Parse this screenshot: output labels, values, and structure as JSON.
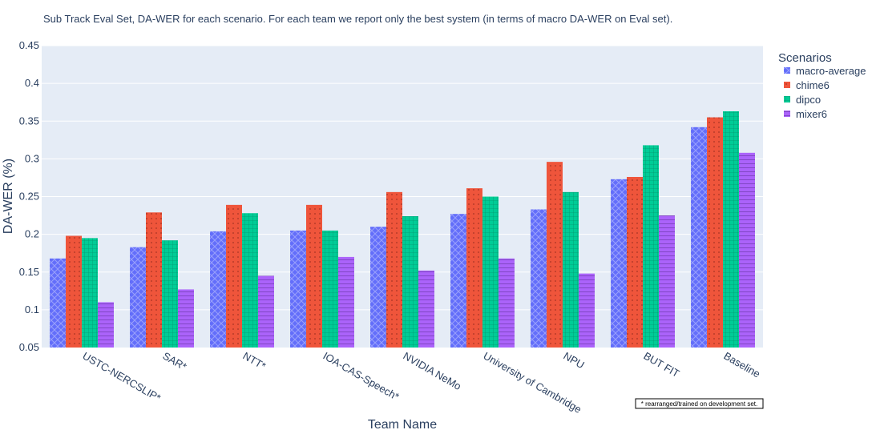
{
  "chart_data": {
    "type": "bar",
    "title": "Sub Track Eval Set, DA-WER for each scenario. For each team we report only the best system (in terms of macro DA-WER on Eval set).",
    "xlabel": "Team Name",
    "ylabel": "DA-WER (%)",
    "ylim": [
      0.05,
      0.45
    ],
    "yticks": [
      0.05,
      0.1,
      0.15,
      0.2,
      0.25,
      0.3,
      0.35,
      0.4,
      0.45
    ],
    "ytick_labels": [
      "0.05",
      "0.1",
      "0.15",
      "0.2",
      "0.25",
      "0.3",
      "0.35",
      "0.4",
      "0.45"
    ],
    "grid": true,
    "legend_title": "Scenarios",
    "legend_position": "top-right outside",
    "categories": [
      "USTC-NERCSLIP*",
      "SAR*",
      "NTT*",
      "IOA-CAS-Speech*",
      "NVIDIA NeMo",
      "University of Cambridge",
      "NPU",
      "BUT FIT",
      "Baseline"
    ],
    "series": [
      {
        "name": "macro-average",
        "color": "#636efa",
        "pattern": "crosshatch",
        "values": [
          0.168,
          0.183,
          0.204,
          0.205,
          0.21,
          0.227,
          0.233,
          0.273,
          0.342
        ]
      },
      {
        "name": "chime6",
        "color": "#ef553b",
        "pattern": "dots",
        "values": [
          0.198,
          0.229,
          0.239,
          0.239,
          0.256,
          0.261,
          0.296,
          0.276,
          0.355
        ]
      },
      {
        "name": "dipco",
        "color": "#00cc96",
        "pattern": "grid",
        "values": [
          0.195,
          0.192,
          0.228,
          0.205,
          0.224,
          0.25,
          0.256,
          0.318,
          0.363
        ]
      },
      {
        "name": "mixer6",
        "color": "#ab63fa",
        "pattern": "hlines",
        "values": [
          0.11,
          0.127,
          0.145,
          0.17,
          0.152,
          0.168,
          0.148,
          0.225,
          0.308
        ]
      }
    ],
    "annotation": "* rearranged/trained on development set."
  }
}
